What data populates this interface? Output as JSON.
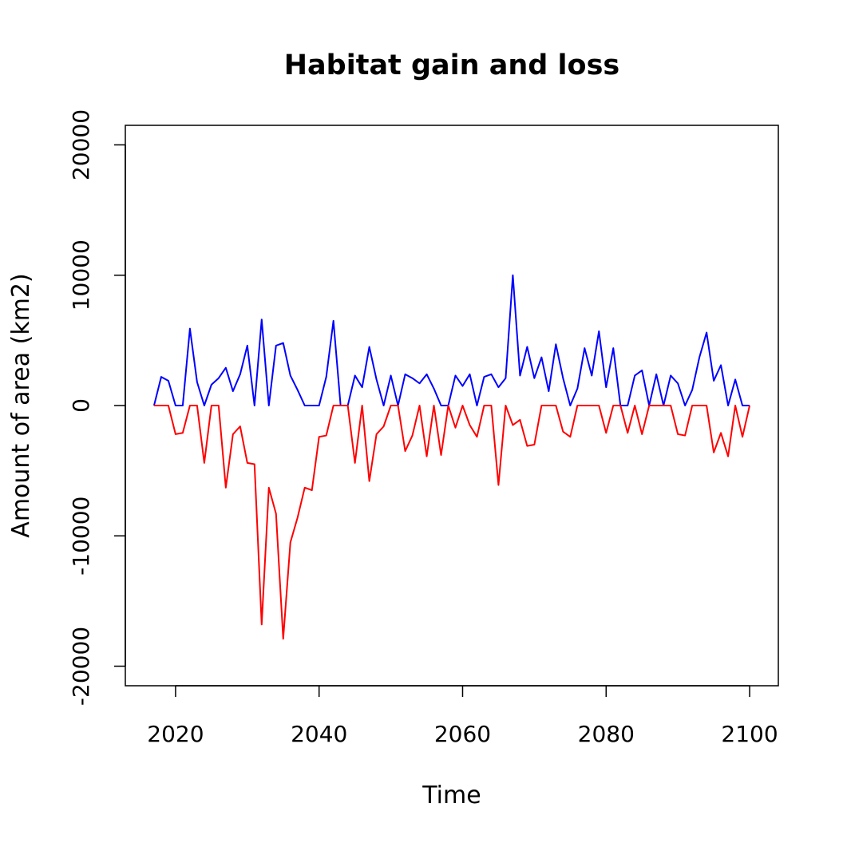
{
  "chart_data": {
    "type": "line",
    "title": "Habitat gain and loss",
    "xlabel": "Time",
    "ylabel": "Amount of area (km2)",
    "xlim": [
      2013,
      2104
    ],
    "ylim": [
      -21500,
      21500
    ],
    "x_ticks": [
      2020,
      2040,
      2060,
      2080,
      2100
    ],
    "x_tick_labels": [
      "2020",
      "2040",
      "2060",
      "2080",
      "2100"
    ],
    "y_ticks": [
      -20000,
      -10000,
      0,
      10000,
      20000
    ],
    "y_tick_labels": [
      "-20000",
      "-10000",
      "0",
      "10000",
      "20000"
    ],
    "grid": false,
    "legend": "none",
    "x": [
      2017,
      2018,
      2019,
      2020,
      2021,
      2022,
      2023,
      2024,
      2025,
      2026,
      2027,
      2028,
      2029,
      2030,
      2031,
      2032,
      2033,
      2034,
      2035,
      2036,
      2037,
      2038,
      2039,
      2040,
      2041,
      2042,
      2043,
      2044,
      2045,
      2046,
      2047,
      2048,
      2049,
      2050,
      2051,
      2052,
      2053,
      2054,
      2055,
      2056,
      2057,
      2058,
      2059,
      2060,
      2061,
      2062,
      2063,
      2064,
      2065,
      2066,
      2067,
      2068,
      2069,
      2070,
      2071,
      2072,
      2073,
      2074,
      2075,
      2076,
      2077,
      2078,
      2079,
      2080,
      2081,
      2082,
      2083,
      2084,
      2085,
      2086,
      2087,
      2088,
      2089,
      2090,
      2091,
      2092,
      2093,
      2094,
      2095,
      2096,
      2097,
      2098,
      2099,
      2100
    ],
    "series": [
      {
        "color": "#0000ff",
        "values": [
          0,
          2200,
          1900,
          0,
          0,
          5900,
          1800,
          0,
          1600,
          2100,
          2900,
          1100,
          2400,
          4600,
          0,
          6600,
          0,
          4600,
          4800,
          2300,
          1200,
          0,
          0,
          0,
          2200,
          6500,
          0,
          0,
          2300,
          1400,
          4500,
          2000,
          0,
          2300,
          0,
          2400,
          2100,
          1700,
          2400,
          1300,
          0,
          0,
          2300,
          1500,
          2400,
          0,
          2200,
          2400,
          1400,
          2100,
          10000,
          2300,
          4500,
          2100,
          3700,
          1100,
          4700,
          2100,
          0,
          1300,
          4400,
          2300,
          5700,
          1400,
          4400,
          0,
          0,
          2300,
          2700,
          0,
          2400,
          0,
          2300,
          1700,
          0,
          1200,
          3700,
          5600,
          1900,
          3100,
          0,
          2000,
          0,
          0
        ]
      },
      {
        "color": "#ff0000",
        "values": [
          0,
          0,
          0,
          -2200,
          -2100,
          0,
          0,
          -4400,
          0,
          0,
          -6300,
          -2200,
          -1600,
          -4400,
          -4500,
          -16800,
          -6300,
          -8300,
          -17900,
          -10500,
          -8600,
          -6300,
          -6500,
          -2400,
          -2300,
          0,
          0,
          0,
          -4400,
          0,
          -5800,
          -2200,
          -1600,
          0,
          0,
          -3500,
          -2300,
          0,
          -3900,
          0,
          -3800,
          0,
          -1700,
          0,
          -1500,
          -2400,
          0,
          0,
          -6100,
          0,
          -1500,
          -1100,
          -3100,
          -3000,
          0,
          0,
          0,
          -2000,
          -2400,
          0,
          0,
          0,
          0,
          -2100,
          0,
          0,
          -2100,
          0,
          -2200,
          0,
          0,
          0,
          0,
          -2200,
          -2300,
          0,
          0,
          0,
          -3600,
          -2100,
          -3900,
          0,
          -2400,
          0
        ]
      }
    ]
  }
}
